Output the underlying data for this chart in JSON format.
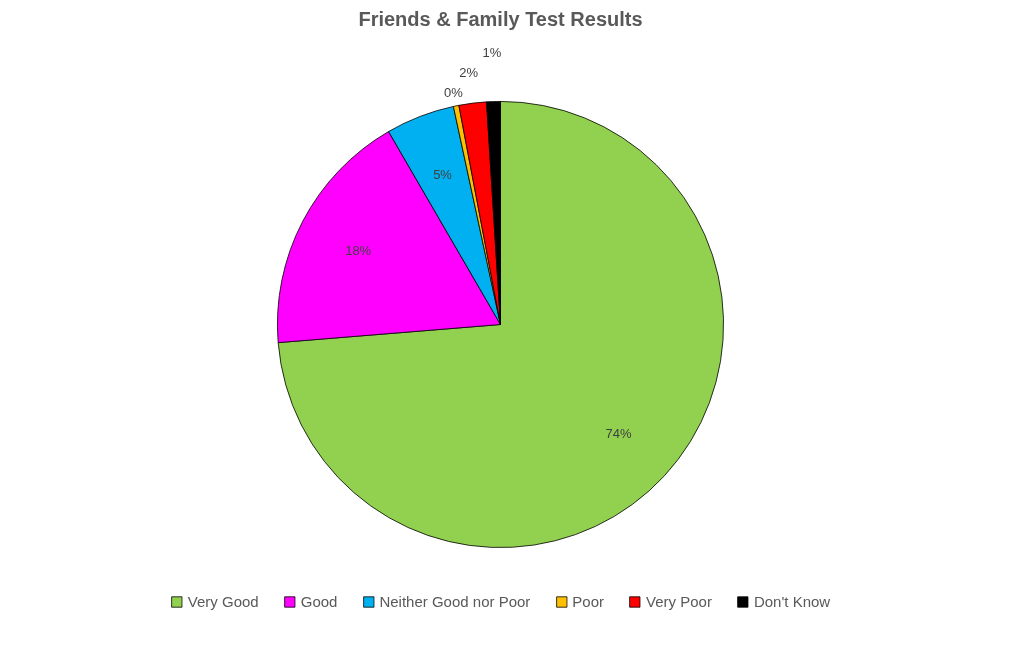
{
  "chart_data": {
    "type": "pie",
    "title": "Friends & Family Test Results",
    "categories": [
      "Very Good",
      "Good",
      "Neither Good nor Poor",
      "Poor",
      "Very Poor",
      "Don't Know"
    ],
    "values": [
      74,
      18,
      5,
      0.4,
      2,
      1
    ],
    "colors": [
      "#92d050",
      "#ff00ff",
      "#00b0f0",
      "#ffc000",
      "#ff0000",
      "#000000"
    ],
    "value_labels": [
      "74%",
      "18%",
      "5%",
      "0%",
      "2%",
      "1%"
    ],
    "legend": "bottom"
  }
}
